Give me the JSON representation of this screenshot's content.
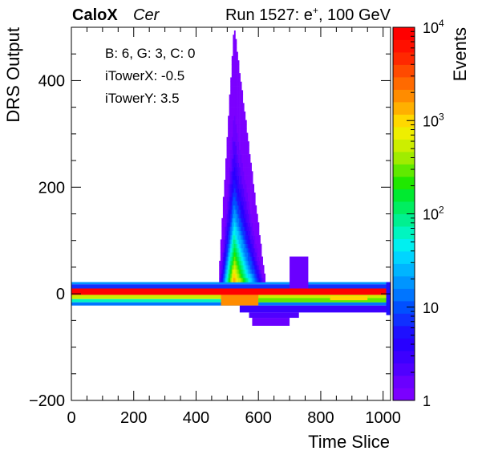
{
  "header": {
    "brand": "CaloX",
    "subtitle": "Cer",
    "run_prefix": "Run 1527: e",
    "run_sup": "+",
    "run_suffix": ", 100 GeV"
  },
  "annotations": {
    "line1": "B: 6, G: 3, C: 0",
    "line2": "iTowerX: -0.5",
    "line3": "iTowerY: 3.5"
  },
  "chart_data": {
    "type": "heatmap",
    "xlabel": "Time Slice",
    "ylabel": "DRS Output",
    "zlabel": "Events",
    "xlim": [
      0,
      1024
    ],
    "ylim": [
      -200,
      500
    ],
    "zlim": [
      1,
      10000
    ],
    "z_scale": "log",
    "x_ticks": [
      "0",
      "200",
      "400",
      "600",
      "800",
      "1000"
    ],
    "y_ticks": [
      "−200",
      "0",
      "200",
      "400"
    ],
    "z_ticks": [
      {
        "base": "1",
        "exp": ""
      },
      {
        "base": "10",
        "exp": ""
      },
      {
        "base": "10",
        "exp": "2"
      },
      {
        "base": "10",
        "exp": "3"
      },
      {
        "base": "10",
        "exp": "4"
      }
    ],
    "palette": [
      "#7b00ff",
      "#6a00ff",
      "#5000ff",
      "#3c00ff",
      "#2800ff",
      "#1e10ff",
      "#1030ff",
      "#0050ff",
      "#0075ff",
      "#0095ff",
      "#00b5ff",
      "#00d5ff",
      "#00f0f0",
      "#00f5c0",
      "#00f090",
      "#00ee60",
      "#00ea30",
      "#20e800",
      "#60ea00",
      "#a0ec00",
      "#ccee00",
      "#eeee00",
      "#ffd800",
      "#ffb000",
      "#ff8c00",
      "#ff6a00",
      "#ff4a00",
      "#ff2800",
      "#ff1000",
      "#ff0000"
    ],
    "bands": [
      {
        "x": [
          0,
          1024
        ],
        "y": [
          -2,
          10
        ],
        "z": 10000
      },
      {
        "x": [
          0,
          1024
        ],
        "y": [
          10,
          18
        ],
        "z": 8
      },
      {
        "x": [
          0,
          1024
        ],
        "y": [
          18,
          22
        ],
        "z": 20
      },
      {
        "x": [
          0,
          1024
        ],
        "y": [
          -10,
          -2
        ],
        "z": 500
      },
      {
        "x": [
          0,
          1024
        ],
        "y": [
          -16,
          -10
        ],
        "z": 60
      },
      {
        "x": [
          0,
          1024
        ],
        "y": [
          -22,
          -16
        ],
        "z": 15
      },
      {
        "x": [
          480,
          600
        ],
        "y": [
          -22,
          -2
        ],
        "z": 2000
      },
      {
        "x": [
          600,
          1024
        ],
        "y": [
          -16,
          -8
        ],
        "z": 300
      },
      {
        "x": [
          830,
          950
        ],
        "y": [
          -12,
          -4
        ],
        "z": 900
      },
      {
        "x": [
          540,
          1024
        ],
        "y": [
          -35,
          -22
        ],
        "z": 3
      },
      {
        "x": [
          570,
          730
        ],
        "y": [
          -45,
          -35
        ],
        "z": 2
      },
      {
        "x": [
          580,
          700
        ],
        "y": [
          -60,
          -45
        ],
        "z": 1.5
      },
      {
        "x": [
          700,
          760
        ],
        "y": [
          10,
          70
        ],
        "z": 1.5
      },
      {
        "x": [
          1010,
          1024
        ],
        "y": [
          -40,
          22
        ],
        "z": 5
      }
    ],
    "peak": {
      "x_range": [
        470,
        620
      ],
      "center": 520,
      "y_max": 500,
      "z_max": 1800
    }
  }
}
